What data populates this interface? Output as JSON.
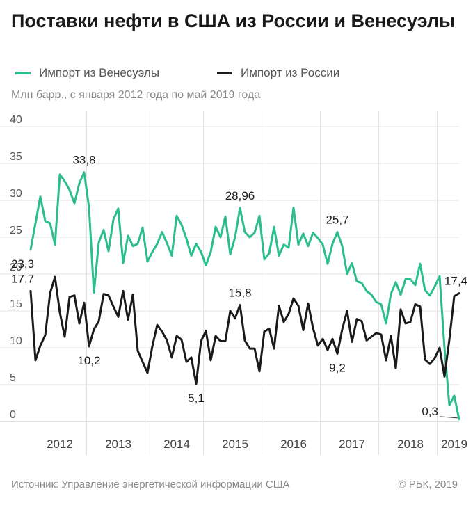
{
  "title": "Поставки нефти в США из России и Венесуэлы",
  "legend": [
    {
      "label": "Импорт из Венесуэлы",
      "color": "#2bbd8a"
    },
    {
      "label": "Импорт из России",
      "color": "#1a1a1a"
    }
  ],
  "subtitle": "Млн барр., с января 2012 года по май 2019 года",
  "source": "Источник: Управление энергетической информации США",
  "copyright": "© РБК, 2019",
  "chart_data": {
    "type": "line",
    "title": "Поставки нефти в США из России и Венесуэлы",
    "ylabel": "Млн барр.",
    "xlabel": "",
    "ylim": [
      0,
      40
    ],
    "yticks": [
      0,
      5,
      10,
      15,
      20,
      25,
      30,
      35,
      40
    ],
    "grid": true,
    "legend_position": "top",
    "x_labels": [
      "2012",
      "2013",
      "2014",
      "2015",
      "2016",
      "2017",
      "2018",
      "2019"
    ],
    "x_label_month_index": [
      6,
      18,
      30,
      42,
      54,
      66,
      78,
      87
    ],
    "x_grid_month_index": [
      12,
      24,
      36,
      48,
      60,
      72,
      84
    ],
    "months_count": 89,
    "series": [
      {
        "name": "Импорт из Венесуэлы",
        "color": "#2bbd8a",
        "values": [
          23.3,
          26.9,
          30.5,
          27.2,
          26.9,
          24.0,
          33.5,
          32.6,
          31.4,
          29.6,
          32.3,
          33.8,
          29.0,
          17.5,
          24.3,
          26.0,
          23.1,
          27.4,
          28.9,
          21.5,
          25.2,
          23.8,
          24.1,
          26.3,
          21.7,
          23.0,
          24.1,
          25.7,
          24.2,
          22.5,
          27.9,
          26.7,
          24.8,
          22.5,
          24.1,
          23.0,
          21.2,
          23.0,
          26.4,
          25.0,
          27.8,
          22.7,
          25.0,
          28.96,
          25.7,
          25.0,
          25.6,
          27.9,
          22.0,
          22.8,
          26.4,
          22.5,
          24.0,
          23.6,
          29.0,
          24.0,
          25.5,
          23.8,
          25.6,
          24.9,
          24.0,
          21.4,
          24.1,
          25.7,
          23.8,
          20.0,
          21.5,
          19.0,
          18.8,
          17.7,
          17.2,
          16.2,
          15.9,
          13.3,
          17.3,
          18.9,
          17.2,
          19.3,
          19.3,
          18.5,
          21.4,
          17.8,
          17.1,
          18.3,
          19.7,
          10.0,
          2.2,
          3.5,
          0.3
        ]
      },
      {
        "name": "Импорт из России",
        "color": "#1a1a1a",
        "values": [
          17.7,
          8.3,
          10.3,
          11.7,
          17.4,
          19.6,
          14.8,
          11.5,
          16.9,
          17.1,
          13.3,
          16.1,
          10.2,
          12.5,
          13.6,
          17.3,
          17.1,
          15.6,
          14.2,
          17.7,
          13.8,
          17.2,
          9.6,
          8.1,
          6.6,
          10.2,
          13.1,
          12.2,
          11.0,
          8.7,
          11.6,
          11.1,
          8.1,
          8.7,
          5.1,
          10.9,
          12.3,
          8.3,
          11.6,
          10.9,
          10.9,
          15.0,
          14.0,
          15.8,
          11.0,
          9.9,
          9.9,
          6.8,
          12.2,
          12.6,
          9.9,
          15.7,
          13.5,
          14.6,
          16.7,
          15.7,
          12.4,
          16.0,
          12.7,
          10.3,
          11.2,
          9.7,
          11.2,
          9.2,
          12.5,
          15.0,
          10.8,
          13.9,
          13.6,
          11.0,
          11.5,
          12.0,
          11.8,
          8.3,
          11.6,
          7.2,
          15.2,
          13.3,
          13.5,
          15.9,
          15.6,
          8.4,
          7.8,
          8.6,
          10.0,
          6.1,
          11.1,
          17.0,
          17.4
        ]
      }
    ],
    "annotations": [
      {
        "label": "23,3",
        "series": 0,
        "index": 0,
        "pos": "below"
      },
      {
        "label": "33,8",
        "series": 0,
        "index": 11,
        "pos": "above"
      },
      {
        "label": "28,96",
        "series": 0,
        "index": 43,
        "pos": "above"
      },
      {
        "label": "25,7",
        "series": 0,
        "index": 63,
        "pos": "above"
      },
      {
        "label": "0,3",
        "series": 0,
        "index": 88,
        "pos": "left"
      },
      {
        "label": "17,7",
        "series": 1,
        "index": 0,
        "pos": "above"
      },
      {
        "label": "10,2",
        "series": 1,
        "index": 12,
        "pos": "below"
      },
      {
        "label": "5,1",
        "series": 1,
        "index": 34,
        "pos": "below"
      },
      {
        "label": "15,8",
        "series": 1,
        "index": 43,
        "pos": "above"
      },
      {
        "label": "9,2",
        "series": 1,
        "index": 63,
        "pos": "below"
      },
      {
        "label": "17,4",
        "series": 1,
        "index": 88,
        "pos": "above"
      }
    ]
  }
}
